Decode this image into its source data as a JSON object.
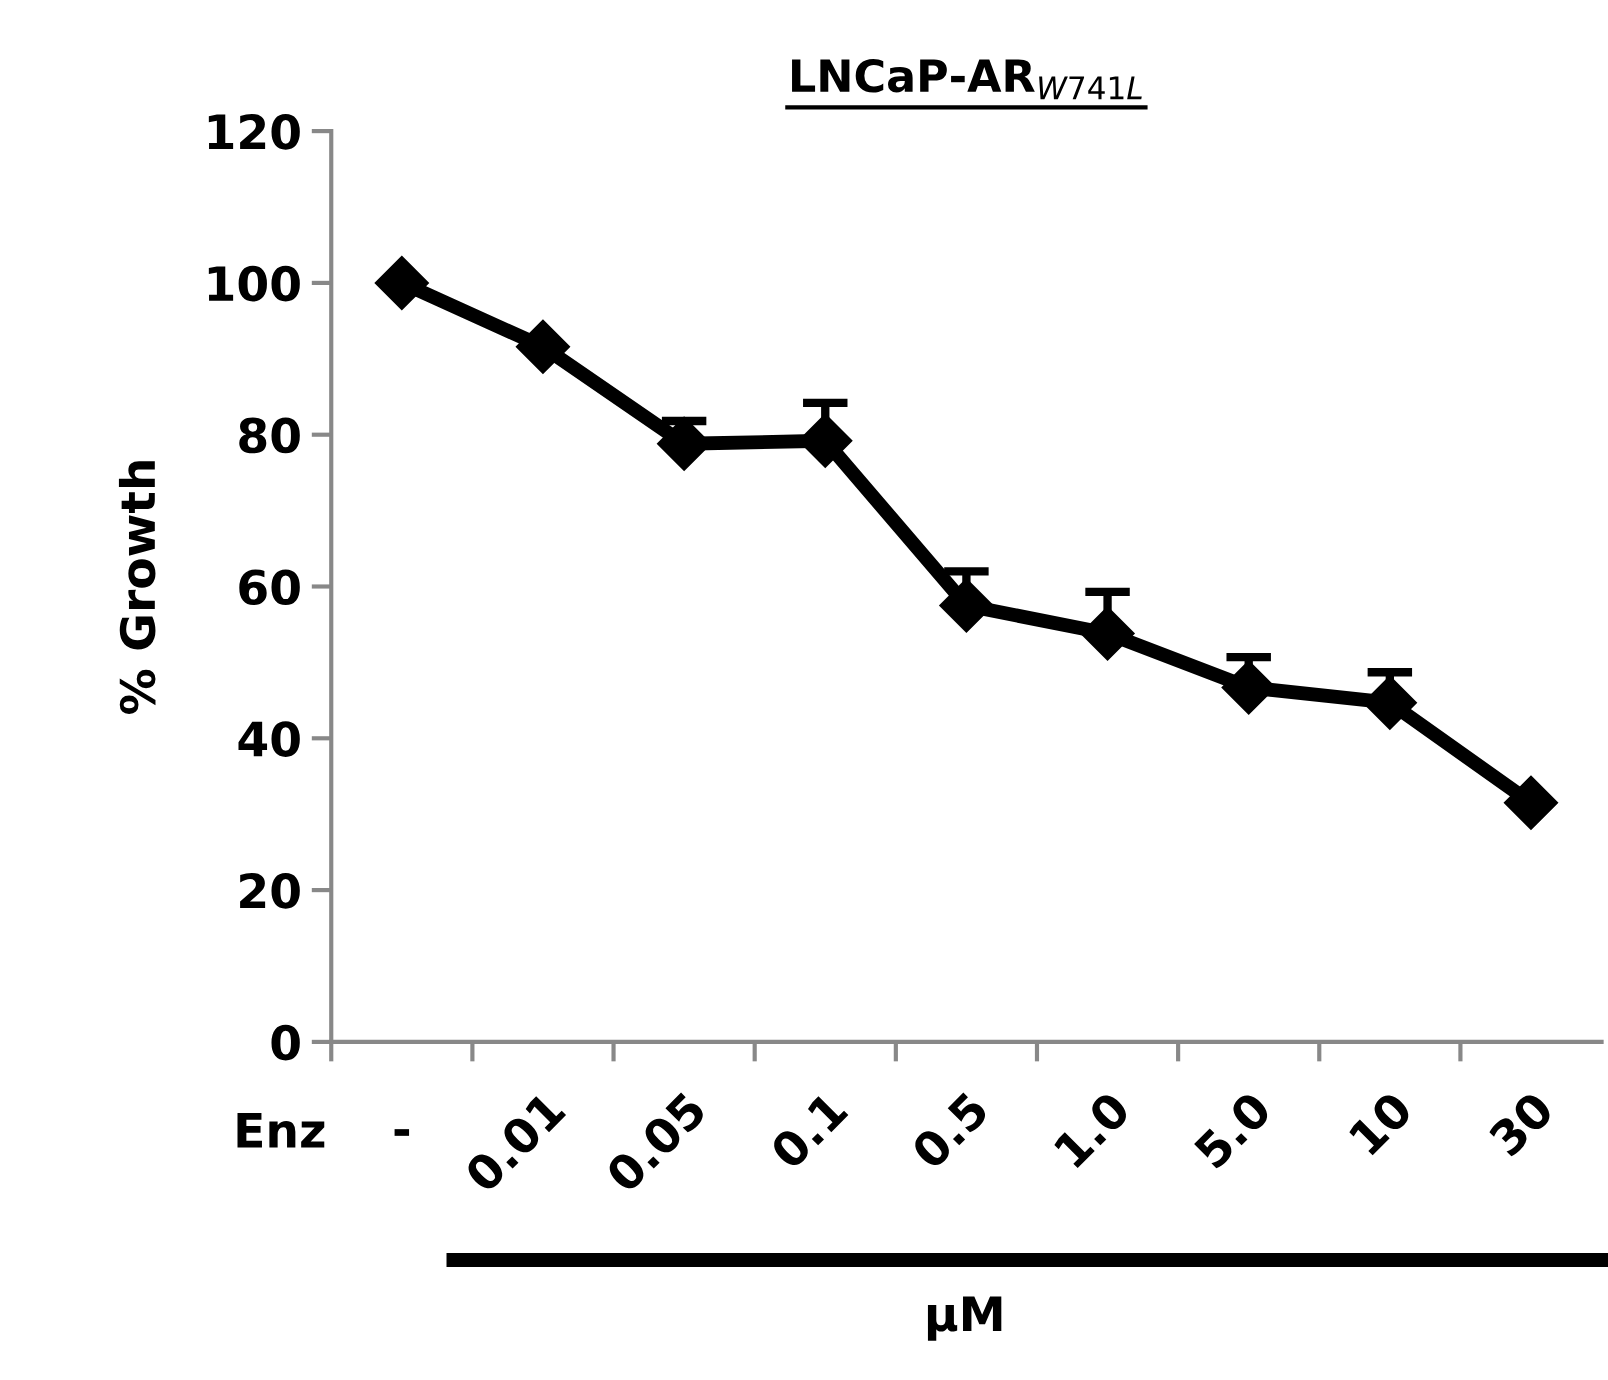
{
  "chart_data": {
    "type": "line",
    "title": "LNCaP-AR$_{W741L}$",
    "ylabel": "% Growth",
    "xlabel": "μM",
    "annotations": [
      "Enz"
    ],
    "categories": [
      "-",
      "0.01",
      "0.05",
      "0.1",
      "0.5",
      "1.0",
      "5.0",
      "10",
      "30"
    ],
    "series": [
      {
        "color": "#000000",
        "values": [
          100,
          91.6,
          78.8,
          79.2,
          57.5,
          53.8,
          46.7,
          44.7,
          31.5
        ],
        "errors": [
          null,
          null,
          [
            78.8,
            81.8
          ],
          [
            79.2,
            84.2
          ],
          [
            57.5,
            62
          ],
          [
            53.8,
            59.3
          ],
          [
            46.7,
            50.7
          ],
          [
            44.7,
            48.7
          ],
          null
        ]
      }
    ],
    "ylim": [
      0,
      120
    ],
    "yticks": [
      0,
      20,
      40,
      60,
      80,
      100,
      120
    ],
    "grid": false,
    "legend": false,
    "marker": "diamond",
    "line_style": "solid"
  }
}
